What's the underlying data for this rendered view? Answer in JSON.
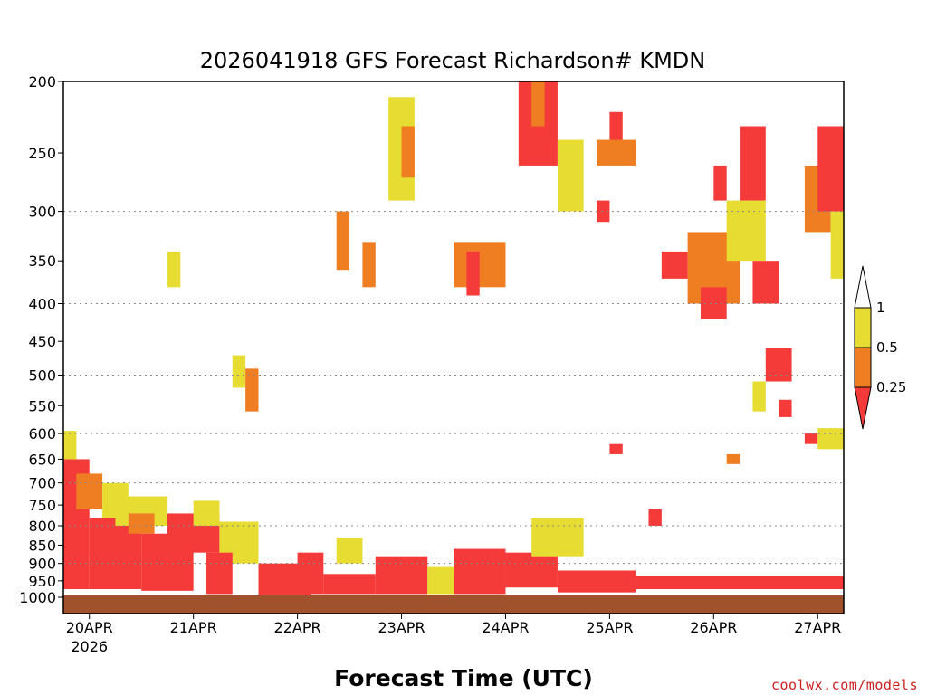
{
  "chart_data": {
    "type": "heatmap",
    "title": "2026041918 GFS Forecast Richardson# KMDN",
    "xlabel": "Forecast Time (UTC)",
    "ylabel": "",
    "x_range": [
      "2026-04-19T18:00Z",
      "2026-04-27T06:00Z"
    ],
    "x_ticks": [
      {
        "label": "20APR",
        "sublabel": "2026",
        "time": "2026-04-20T00:00Z"
      },
      {
        "label": "21APR",
        "time": "2026-04-21T00:00Z"
      },
      {
        "label": "22APR",
        "time": "2026-04-22T00:00Z"
      },
      {
        "label": "23APR",
        "time": "2026-04-23T00:00Z"
      },
      {
        "label": "24APR",
        "time": "2026-04-24T00:00Z"
      },
      {
        "label": "25APR",
        "time": "2026-04-25T00:00Z"
      },
      {
        "label": "26APR",
        "time": "2026-04-26T00:00Z"
      },
      {
        "label": "27APR",
        "time": "2026-04-27T00:00Z"
      }
    ],
    "y_axis": {
      "scale": "log-pressure",
      "inverted": true,
      "range_hPa": [
        1000,
        200
      ],
      "ticks": [
        "200",
        "250",
        "300",
        "350",
        "400",
        "450",
        "500",
        "550",
        "600",
        "650",
        "700",
        "750",
        "800",
        "850",
        "900",
        "950",
        "1000"
      ],
      "grid_dotted_at": [
        300,
        400,
        500,
        600,
        700,
        800,
        900
      ]
    },
    "colorbar": {
      "levels": [
        "1",
        "0.5",
        "0.25"
      ],
      "bins": [
        {
          "range": "> 1",
          "color": "#ffffff"
        },
        {
          "range": "0.5–1",
          "color": "#e6dc32"
        },
        {
          "range": "0.25–0.5",
          "color": "#ef7e23"
        },
        {
          "range": "< 0.25",
          "color": "#f53a3a"
        }
      ]
    },
    "ground_color": "#a0522d",
    "cells": [
      {
        "t0": "2026-04-19T18Z",
        "t1": "2026-04-20T00Z",
        "p_top": 650,
        "p_bot": 975,
        "color": "#f53a3a"
      },
      {
        "t0": "2026-04-19T18Z",
        "t1": "2026-04-19T21Z",
        "p_top": 595,
        "p_bot": 650,
        "color": "#e6dc32"
      },
      {
        "t0": "2026-04-19T21Z",
        "t1": "2026-04-20T03Z",
        "p_top": 680,
        "p_bot": 760,
        "color": "#ef7e23"
      },
      {
        "t0": "2026-04-20T03Z",
        "t1": "2026-04-20T09Z",
        "p_top": 700,
        "p_bot": 780,
        "color": "#e6dc32"
      },
      {
        "t0": "2026-04-20T00Z",
        "t1": "2026-04-20T12Z",
        "p_top": 780,
        "p_bot": 975,
        "color": "#f53a3a"
      },
      {
        "t0": "2026-04-20T06Z",
        "t1": "2026-04-20T18Z",
        "p_top": 730,
        "p_bot": 800,
        "color": "#e6dc32"
      },
      {
        "t0": "2026-04-20T09Z",
        "t1": "2026-04-20T15Z",
        "p_top": 770,
        "p_bot": 820,
        "color": "#ef7e23"
      },
      {
        "t0": "2026-04-20T12Z",
        "t1": "2026-04-21T00Z",
        "p_top": 820,
        "p_bot": 980,
        "color": "#f53a3a"
      },
      {
        "t0": "2026-04-20T18Z",
        "t1": "2026-04-21T06Z",
        "p_top": 770,
        "p_bot": 870,
        "color": "#f53a3a"
      },
      {
        "t0": "2026-04-21T00Z",
        "t1": "2026-04-21T06Z",
        "p_top": 740,
        "p_bot": 800,
        "color": "#e6dc32"
      },
      {
        "t0": "2026-04-21T06Z",
        "t1": "2026-04-21T15Z",
        "p_top": 790,
        "p_bot": 900,
        "color": "#e6dc32"
      },
      {
        "t0": "2026-04-21T03Z",
        "t1": "2026-04-21T09Z",
        "p_top": 870,
        "p_bot": 990,
        "color": "#f53a3a"
      },
      {
        "t0": "2026-04-21T15Z",
        "t1": "2026-04-22T03Z",
        "p_top": 900,
        "p_bot": 995,
        "color": "#f53a3a"
      },
      {
        "t0": "2026-04-22T00Z",
        "t1": "2026-04-22T06Z",
        "p_top": 870,
        "p_bot": 990,
        "color": "#f53a3a"
      },
      {
        "t0": "2026-04-22T06Z",
        "t1": "2026-04-22T18Z",
        "p_top": 930,
        "p_bot": 990,
        "color": "#f53a3a"
      },
      {
        "t0": "2026-04-22T09Z",
        "t1": "2026-04-22T15Z",
        "p_top": 830,
        "p_bot": 900,
        "color": "#e6dc32"
      },
      {
        "t0": "2026-04-22T18Z",
        "t1": "2026-04-23T06Z",
        "p_top": 880,
        "p_bot": 990,
        "color": "#f53a3a"
      },
      {
        "t0": "2026-04-23T06Z",
        "t1": "2026-04-23T12Z",
        "p_top": 910,
        "p_bot": 990,
        "color": "#e6dc32"
      },
      {
        "t0": "2026-04-23T12Z",
        "t1": "2026-04-24T00Z",
        "p_top": 860,
        "p_bot": 990,
        "color": "#f53a3a"
      },
      {
        "t0": "2026-04-24T00Z",
        "t1": "2026-04-24T12Z",
        "p_top": 870,
        "p_bot": 970,
        "color": "#f53a3a"
      },
      {
        "t0": "2026-04-24T06Z",
        "t1": "2026-04-24T18Z",
        "p_top": 780,
        "p_bot": 880,
        "color": "#e6dc32"
      },
      {
        "t0": "2026-04-24T12Z",
        "t1": "2026-04-25T06Z",
        "p_top": 920,
        "p_bot": 985,
        "color": "#f53a3a"
      },
      {
        "t0": "2026-04-25T06Z",
        "t1": "2026-04-27T06Z",
        "p_top": 935,
        "p_bot": 975,
        "color": "#f53a3a"
      },
      {
        "t0": "2026-04-20T18Z",
        "t1": "2026-04-20T21Z",
        "p_top": 340,
        "p_bot": 380,
        "color": "#e6dc32"
      },
      {
        "t0": "2026-04-21T09Z",
        "t1": "2026-04-21T12Z",
        "p_top": 470,
        "p_bot": 520,
        "color": "#e6dc32"
      },
      {
        "t0": "2026-04-21T12Z",
        "t1": "2026-04-21T15Z",
        "p_top": 490,
        "p_bot": 560,
        "color": "#ef7e23"
      },
      {
        "t0": "2026-04-22T09Z",
        "t1": "2026-04-22T12Z",
        "p_top": 300,
        "p_bot": 360,
        "color": "#ef7e23"
      },
      {
        "t0": "2026-04-22T15Z",
        "t1": "2026-04-22T18Z",
        "p_top": 330,
        "p_bot": 380,
        "color": "#ef7e23"
      },
      {
        "t0": "2026-04-22T21Z",
        "t1": "2026-04-23T03Z",
        "p_top": 210,
        "p_bot": 290,
        "color": "#e6dc32"
      },
      {
        "t0": "2026-04-23T00Z",
        "t1": "2026-04-23T03Z",
        "p_top": 230,
        "p_bot": 270,
        "color": "#ef7e23"
      },
      {
        "t0": "2026-04-23T12Z",
        "t1": "2026-04-24T00Z",
        "p_top": 330,
        "p_bot": 380,
        "color": "#ef7e23"
      },
      {
        "t0": "2026-04-23T15Z",
        "t1": "2026-04-23T18Z",
        "p_top": 340,
        "p_bot": 390,
        "color": "#f53a3a"
      },
      {
        "t0": "2026-04-24T03Z",
        "t1": "2026-04-24T12Z",
        "p_top": 200,
        "p_bot": 260,
        "color": "#f53a3a"
      },
      {
        "t0": "2026-04-24T06Z",
        "t1": "2026-04-24T09Z",
        "p_top": 200,
        "p_bot": 230,
        "color": "#ef7e23"
      },
      {
        "t0": "2026-04-24T12Z",
        "t1": "2026-04-24T18Z",
        "p_top": 240,
        "p_bot": 300,
        "color": "#e6dc32"
      },
      {
        "t0": "2026-04-24T21Z",
        "t1": "2026-04-25T00Z",
        "p_top": 290,
        "p_bot": 310,
        "color": "#f53a3a"
      },
      {
        "t0": "2026-04-25T00Z",
        "t1": "2026-04-25T03Z",
        "p_top": 220,
        "p_bot": 250,
        "color": "#f53a3a"
      },
      {
        "t0": "2026-04-24T21Z",
        "t1": "2026-04-25T06Z",
        "p_top": 240,
        "p_bot": 260,
        "color": "#ef7e23"
      },
      {
        "t0": "2026-04-25T12Z",
        "t1": "2026-04-25T18Z",
        "p_top": 340,
        "p_bot": 370,
        "color": "#f53a3a"
      },
      {
        "t0": "2026-04-25T18Z",
        "t1": "2026-04-26T06Z",
        "p_top": 320,
        "p_bot": 400,
        "color": "#ef7e23"
      },
      {
        "t0": "2026-04-25T21Z",
        "t1": "2026-04-26T03Z",
        "p_top": 380,
        "p_bot": 420,
        "color": "#f53a3a"
      },
      {
        "t0": "2026-04-26T00Z",
        "t1": "2026-04-26T03Z",
        "p_top": 260,
        "p_bot": 290,
        "color": "#f53a3a"
      },
      {
        "t0": "2026-04-26T06Z",
        "t1": "2026-04-26T12Z",
        "p_top": 230,
        "p_bot": 290,
        "color": "#f53a3a"
      },
      {
        "t0": "2026-04-26T03Z",
        "t1": "2026-04-26T12Z",
        "p_top": 290,
        "p_bot": 350,
        "color": "#e6dc32"
      },
      {
        "t0": "2026-04-26T09Z",
        "t1": "2026-04-26T15Z",
        "p_top": 350,
        "p_bot": 400,
        "color": "#f53a3a"
      },
      {
        "t0": "2026-04-26T12Z",
        "t1": "2026-04-26T18Z",
        "p_top": 460,
        "p_bot": 510,
        "color": "#f53a3a"
      },
      {
        "t0": "2026-04-26T21Z",
        "t1": "2026-04-27T03Z",
        "p_top": 260,
        "p_bot": 320,
        "color": "#ef7e23"
      },
      {
        "t0": "2026-04-27T00Z",
        "t1": "2026-04-27T06Z",
        "p_top": 230,
        "p_bot": 300,
        "color": "#f53a3a"
      },
      {
        "t0": "2026-04-27T03Z",
        "t1": "2026-04-27T06Z",
        "p_top": 300,
        "p_bot": 370,
        "color": "#e6dc32"
      },
      {
        "t0": "2026-04-26T15Z",
        "t1": "2026-04-26T18Z",
        "p_top": 540,
        "p_bot": 570,
        "color": "#f53a3a"
      },
      {
        "t0": "2026-04-26T21Z",
        "t1": "2026-04-27T00Z",
        "p_top": 600,
        "p_bot": 620,
        "color": "#f53a3a"
      },
      {
        "t0": "2026-04-27T00Z",
        "t1": "2026-04-27T06Z",
        "p_top": 590,
        "p_bot": 630,
        "color": "#e6dc32"
      },
      {
        "t0": "2026-04-25T00Z",
        "t1": "2026-04-25T03Z",
        "p_top": 620,
        "p_bot": 640,
        "color": "#f53a3a"
      },
      {
        "t0": "2026-04-25T09Z",
        "t1": "2026-04-25T12Z",
        "p_top": 760,
        "p_bot": 800,
        "color": "#f53a3a"
      },
      {
        "t0": "2026-04-26T03Z",
        "t1": "2026-04-26T06Z",
        "p_top": 640,
        "p_bot": 660,
        "color": "#ef7e23"
      },
      {
        "t0": "2026-04-26T09Z",
        "t1": "2026-04-26T12Z",
        "p_top": 510,
        "p_bot": 560,
        "color": "#e6dc32"
      }
    ]
  },
  "colorbar_labels": [
    "1",
    "0.5",
    "0.25"
  ],
  "credit": "coolwx.com/models"
}
